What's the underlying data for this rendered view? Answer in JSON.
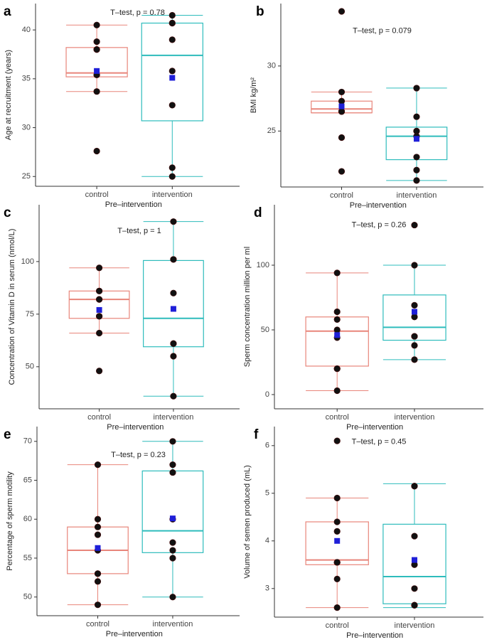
{
  "chart_data": [
    {
      "type": "box",
      "panel": "a",
      "annotation": "T–test, p = 0.78",
      "ylabel": "Age at recruitment (years)",
      "xlabel": "Pre–intervention",
      "categories": [
        "control",
        "intervention"
      ],
      "ylim": [
        24,
        42.7
      ],
      "yticks": [
        25,
        30,
        35,
        40
      ],
      "boxes": [
        {
          "color": "#e8857a",
          "whisker_low": 33.7,
          "q1": 35.2,
          "median": 35.6,
          "q3": 38.2,
          "whisker_high": 40.5,
          "mean": 35.8,
          "points": [
            40.5,
            38.8,
            38,
            38,
            35.4,
            35.4,
            33.7,
            27.6
          ]
        },
        {
          "color": "#2ebcbc",
          "whisker_low": 25,
          "q1": 30.7,
          "median": 37.4,
          "q3": 40.7,
          "whisker_high": 41.5,
          "mean": 35.1,
          "points": [
            41.5,
            40.7,
            40.7,
            39,
            35.8,
            32.3,
            25.9,
            25
          ]
        }
      ]
    },
    {
      "type": "box",
      "panel": "b",
      "annotation": "T–test, p = 0.079",
      "ylabel": "BMI kg/m²",
      "xlabel": "Pre–intervention",
      "categories": [
        "control",
        "intervention"
      ],
      "ylim": [
        20.7,
        34.8
      ],
      "yticks": [
        25,
        30
      ],
      "boxes": [
        {
          "color": "#e8857a",
          "whisker_low": 26.4,
          "q1": 26.4,
          "median": 26.7,
          "q3": 27.3,
          "whisker_high": 28,
          "mean": 26.9,
          "points": [
            34.2,
            28,
            27.3,
            26.5,
            26.5,
            26.5,
            26.5,
            24.5,
            21.9
          ]
        },
        {
          "color": "#2ebcbc",
          "whisker_low": 21.2,
          "q1": 22.8,
          "median": 24.6,
          "q3": 25.3,
          "whisker_high": 28.3,
          "mean": 24.4,
          "points": [
            28.3,
            26.1,
            25,
            25,
            24.6,
            23,
            22,
            21.2
          ]
        }
      ]
    },
    {
      "type": "box",
      "panel": "c",
      "annotation": "T–test, p = 1",
      "ylabel": "Concentration of Vitamin D in serum (nmol/L)",
      "xlabel": "Pre–intervention",
      "categories": [
        "control",
        "intervention"
      ],
      "ylim": [
        30,
        127
      ],
      "yticks": [
        50,
        75,
        100
      ],
      "boxes": [
        {
          "color": "#e8857a",
          "whisker_low": 66,
          "q1": 73,
          "median": 82,
          "q3": 86,
          "whisker_high": 97,
          "mean": 77,
          "points": [
            97,
            86,
            86,
            82,
            82,
            74,
            74,
            66,
            48
          ]
        },
        {
          "color": "#2ebcbc",
          "whisker_low": 36,
          "q1": 59.5,
          "median": 73,
          "q3": 100.5,
          "whisker_high": 119,
          "mean": 77.5,
          "points": [
            119,
            101,
            101,
            85,
            61,
            61,
            55,
            36
          ]
        }
      ]
    },
    {
      "type": "box",
      "panel": "d",
      "annotation": "T–test, p = 0.26",
      "ylabel": "Sperm concentration million per ml",
      "xlabel": "Pre–intervention",
      "categories": [
        "control",
        "intervention"
      ],
      "ylim": [
        -11,
        146.7
      ],
      "yticks": [
        0,
        50,
        100
      ],
      "boxes": [
        {
          "color": "#e8857a",
          "whisker_low": 3,
          "q1": 22,
          "median": 49,
          "q3": 60,
          "whisker_high": 94,
          "mean": 46,
          "points": [
            94,
            64,
            58,
            50,
            44,
            20,
            20,
            3
          ]
        },
        {
          "color": "#2ebcbc",
          "whisker_low": 27,
          "q1": 42,
          "median": 52,
          "q3": 77,
          "whisker_high": 100,
          "mean": 64,
          "points": [
            131,
            100,
            69,
            60,
            45,
            45,
            38,
            27
          ]
        }
      ]
    },
    {
      "type": "box",
      "panel": "e",
      "annotation": "T–test, p = 0.23",
      "ylabel": "Percentage of sperm motility",
      "xlabel": "Pre–intervention",
      "categories": [
        "control",
        "intervention"
      ],
      "ylim": [
        47.6,
        71.9
      ],
      "yticks": [
        50,
        55,
        60,
        65,
        70
      ],
      "boxes": [
        {
          "color": "#e8857a",
          "whisker_low": 49,
          "q1": 53,
          "median": 56,
          "q3": 59,
          "whisker_high": 67,
          "mean": 56.3,
          "points": [
            67,
            60,
            59,
            58,
            56,
            53,
            53,
            52,
            49
          ]
        },
        {
          "color": "#2ebcbc",
          "whisker_low": 50,
          "q1": 55.7,
          "median": 58.5,
          "q3": 66.2,
          "whisker_high": 70,
          "mean": 60.1,
          "points": [
            70,
            67,
            66,
            60,
            57,
            56,
            55,
            50
          ]
        }
      ]
    },
    {
      "type": "box",
      "panel": "f",
      "annotation": "T–test, p = 0.45",
      "ylabel": "Volume of semen produced (mL)",
      "xlabel": "Pre–intervention",
      "categories": [
        "control",
        "intervention"
      ],
      "ylim": [
        2.4,
        6.4
      ],
      "yticks": [
        3,
        4,
        5,
        6
      ],
      "boxes": [
        {
          "color": "#e8857a",
          "whisker_low": 2.6,
          "q1": 3.5,
          "median": 3.6,
          "q3": 4.4,
          "whisker_high": 4.9,
          "mean": 4.0,
          "points": [
            6.1,
            4.9,
            4.4,
            4.2,
            3.55,
            3.55,
            3.55,
            3.2,
            2.6
          ]
        },
        {
          "color": "#2ebcbc",
          "whisker_low": 2.6,
          "q1": 2.68,
          "median": 3.25,
          "q3": 4.35,
          "whisker_high": 5.2,
          "mean": 3.6,
          "points": [
            5.15,
            5.15,
            4.1,
            3.5,
            3.0,
            2.65,
            2.65,
            2.65
          ]
        }
      ]
    }
  ]
}
